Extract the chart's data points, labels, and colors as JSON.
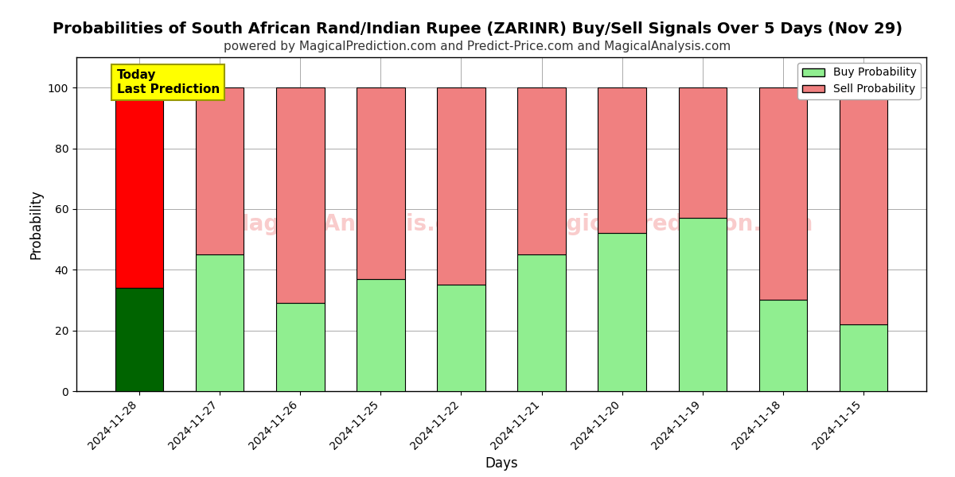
{
  "title": "Probabilities of South African Rand/Indian Rupee (ZARINR) Buy/Sell Signals Over 5 Days (Nov 29)",
  "subtitle": "powered by MagicalPrediction.com and Predict-Price.com and MagicalAnalysis.com",
  "xlabel": "Days",
  "ylabel": "Probability",
  "categories": [
    "2024-11-28",
    "2024-11-27",
    "2024-11-26",
    "2024-11-25",
    "2024-11-22",
    "2024-11-21",
    "2024-11-20",
    "2024-11-19",
    "2024-11-18",
    "2024-11-15"
  ],
  "buy_values": [
    34,
    45,
    29,
    37,
    35,
    45,
    52,
    57,
    30,
    22
  ],
  "sell_values": [
    66,
    55,
    71,
    63,
    65,
    55,
    48,
    43,
    70,
    78
  ],
  "today_bar_index": 0,
  "buy_color_today": "#006400",
  "sell_color_today": "#ff0000",
  "buy_color_normal": "#90EE90",
  "sell_color_normal": "#F08080",
  "bar_edge_color": "#000000",
  "ylim": [
    0,
    110
  ],
  "yticks": [
    0,
    20,
    40,
    60,
    80,
    100
  ],
  "dashed_line_y": 110,
  "today_label": "Today\nLast Prediction",
  "today_label_bg": "#ffff00",
  "today_label_fontsize": 11,
  "grid_color": "#aaaaaa",
  "background_color": "#ffffff",
  "title_fontsize": 14,
  "subtitle_fontsize": 11,
  "legend_buy_label": "Buy Probability",
  "legend_sell_label": "Sell Probability"
}
